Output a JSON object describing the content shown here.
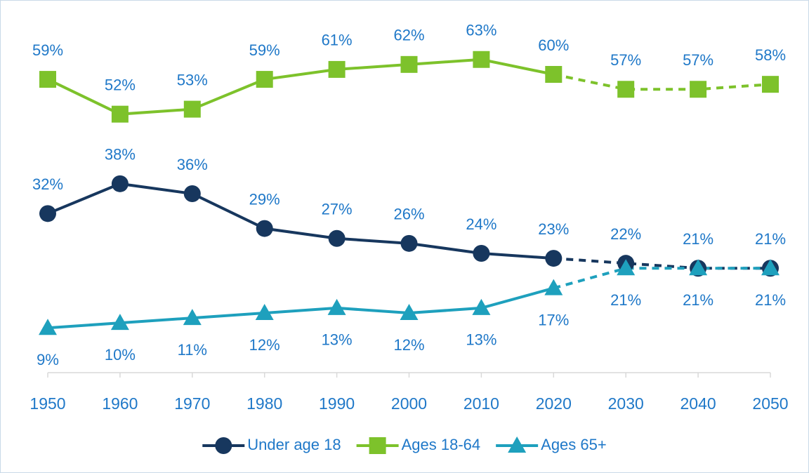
{
  "chart_data": {
    "type": "line",
    "x": [
      1950,
      1960,
      1970,
      1980,
      1990,
      2000,
      2010,
      2020,
      2030,
      2040,
      2050
    ],
    "xlim": [
      1950,
      2050
    ],
    "xticks": [
      1950,
      1960,
      1970,
      1980,
      1990,
      2000,
      2010,
      2020,
      2030,
      2040,
      2050
    ],
    "ylim": [
      0,
      72
    ],
    "dashed_from": 2020,
    "label_color": "#1f78c8",
    "legend": "bottom",
    "series": [
      {
        "name": "Under age 18",
        "color": "#17375e",
        "marker": "circle",
        "label_position": "above",
        "values": [
          32,
          38,
          36,
          29,
          27,
          26,
          24,
          23,
          22,
          21,
          21
        ],
        "value_labels": [
          "32%",
          "38%",
          "36%",
          "29%",
          "27%",
          "26%",
          "24%",
          "23%",
          "22%",
          "21%",
          "21%"
        ]
      },
      {
        "name": "Ages 18-64",
        "color": "#7dc22b",
        "marker": "square",
        "label_position": "above",
        "values": [
          59,
          52,
          53,
          59,
          61,
          62,
          63,
          60,
          57,
          57,
          58
        ],
        "value_labels": [
          "59%",
          "52%",
          "53%",
          "59%",
          "61%",
          "62%",
          "63%",
          "60%",
          "57%",
          "57%",
          "58%"
        ]
      },
      {
        "name": "Ages 65+",
        "color": "#1ea0bd",
        "marker": "triangle",
        "label_position": "below",
        "values": [
          9,
          10,
          11,
          12,
          13,
          12,
          13,
          17,
          21,
          21,
          21
        ],
        "value_labels": [
          "9%",
          "10%",
          "11%",
          "12%",
          "13%",
          "12%",
          "13%",
          "17%",
          "21%",
          "21%",
          "21%"
        ]
      }
    ]
  }
}
